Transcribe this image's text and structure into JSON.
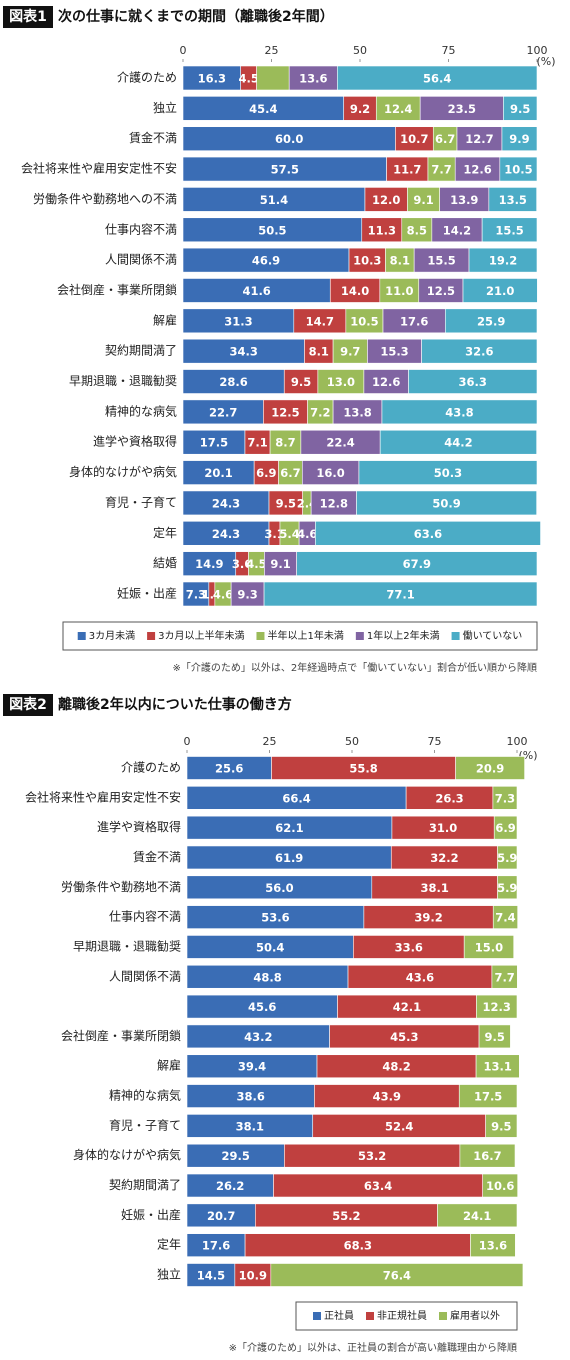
{
  "chart_data": [
    {
      "type": "bar",
      "orientation": "horizontal",
      "stacked": true,
      "label": "図表1",
      "title": "次の仕事に就くまでの期間（離職後2年間）",
      "unit": "(%)",
      "xlim": [
        0,
        100
      ],
      "xticks": [
        0,
        25,
        50,
        75,
        100
      ],
      "grid": false,
      "legend": "bottom",
      "footnote": "※「介護のため」以外は、2年経過時点で「働いていない」割合が低い順から降順",
      "categories": [
        "介護のため",
        "独立",
        "賃金不満",
        "会社将来性や雇用安定性不安",
        "労働条件や勤務地への不満",
        "仕事内容不満",
        "人間関係不満",
        "会社倒産・事業所閉鎖",
        "解雇",
        "契約期間満了",
        "早期退職・退職勧奨",
        "精神的な病気",
        "進学や資格取得",
        "身体的なけがや病気",
        "育児・子育て",
        "定年",
        "結婚",
        "妊娠・出産"
      ],
      "series": [
        {
          "name": "3カ月未満",
          "color": "#3a6db5",
          "values": [
            16.3,
            45.4,
            60.0,
            57.5,
            51.4,
            50.5,
            46.9,
            41.6,
            31.3,
            34.3,
            28.6,
            22.7,
            17.5,
            20.1,
            24.3,
            24.3,
            14.9,
            7.3
          ],
          "value_labels": [
            "16.3",
            "45.4",
            "60.0",
            "57.5",
            "51.4",
            "50.5",
            "46.9",
            "41.6",
            "31.3",
            "34.3",
            "28.6",
            "22.7",
            "17.5",
            "20.1",
            "24.3",
            "24.3",
            "14.9",
            "7.3"
          ]
        },
        {
          "name": "3カ月以上半年未満",
          "color": "#c0403f",
          "values": [
            4.5,
            9.2,
            10.7,
            11.7,
            12.0,
            11.3,
            10.3,
            14.0,
            14.7,
            8.1,
            9.5,
            12.5,
            7.1,
            6.9,
            9.5,
            3.1,
            3.6,
            1.7
          ],
          "value_labels": [
            "4.5",
            "9.2",
            "10.7",
            "11.7",
            "12.0",
            "11.3",
            "10.3",
            "14.0",
            "14.7",
            "8.1",
            "9.5",
            "12.5",
            "7.1",
            "6.9",
            "9.5",
            "3.1",
            "3.6",
            "1.7"
          ]
        },
        {
          "name": "半年以上1年未満",
          "color": "#9bbb59",
          "values": [
            9.2,
            12.4,
            6.7,
            7.7,
            9.1,
            8.5,
            8.1,
            11.0,
            10.5,
            9.7,
            13.0,
            7.2,
            8.7,
            6.7,
            2.4,
            5.4,
            4.5,
            4.6
          ],
          "value_labels": [
            null,
            "12.4",
            "6.7",
            "7.7",
            "9.1",
            "8.5",
            "8.1",
            "11.0",
            "10.5",
            "9.7",
            "13.0",
            "7.2",
            "8.7",
            "6.7",
            "2.4",
            "5.4",
            "4.5",
            "4.6"
          ]
        },
        {
          "name": "1年以上2年未満",
          "color": "#8064a2",
          "values": [
            13.6,
            23.5,
            12.7,
            12.6,
            13.9,
            14.2,
            15.5,
            12.5,
            17.6,
            15.3,
            12.6,
            13.8,
            22.4,
            16.0,
            12.8,
            4.6,
            9.1,
            9.3
          ],
          "value_labels": [
            "13.6",
            "23.5",
            "12.7",
            "12.6",
            "13.9",
            "14.2",
            "15.5",
            "12.5",
            "17.6",
            "15.3",
            "12.6",
            "13.8",
            "22.4",
            "16.0",
            "12.8",
            "4.6",
            "9.1",
            "9.3"
          ]
        },
        {
          "name": "働いていない",
          "color": "#4bacc6",
          "values": [
            56.4,
            9.5,
            9.9,
            10.5,
            13.5,
            15.5,
            19.2,
            21.0,
            25.9,
            32.6,
            36.3,
            43.8,
            44.2,
            50.3,
            50.9,
            63.6,
            67.9,
            77.1
          ],
          "value_labels": [
            "56.4",
            "9.5",
            "9.9",
            "10.5",
            "13.5",
            "15.5",
            "19.2",
            "21.0",
            "25.9",
            "32.6",
            "36.3",
            "43.8",
            "44.2",
            "50.3",
            "50.9",
            "63.6",
            "67.9",
            "77.1"
          ]
        }
      ]
    },
    {
      "type": "bar",
      "orientation": "horizontal",
      "stacked": true,
      "label": "図表2",
      "title": "離職後2年以内についた仕事の働き方",
      "unit": "(%)",
      "xlim": [
        0,
        100
      ],
      "xticks": [
        0,
        25,
        50,
        75,
        100
      ],
      "grid": false,
      "legend": "bottom-right",
      "footnote": "※「介護のため」以外は、正社員の割合が高い離職理由から降順",
      "categories": [
        "介護のため",
        "会社将来性や雇用安定性不安",
        "進学や資格取得",
        "賃金不満",
        "労働条件や勤務地不満",
        "仕事内容不満",
        "早期退職・退職勧奨",
        "人間関係不満",
        null,
        "会社倒産・事業所閉鎖",
        "解雇",
        "精神的な病気",
        "育児・子育て",
        "身体的なけがや病気",
        "契約期間満了",
        "妊娠・出産",
        "定年",
        "独立"
      ],
      "series": [
        {
          "name": "正社員",
          "color": "#3a6db5",
          "values": [
            25.6,
            66.4,
            62.1,
            61.9,
            56.0,
            53.6,
            50.4,
            48.8,
            45.6,
            43.2,
            39.4,
            38.6,
            38.1,
            29.5,
            26.2,
            20.7,
            17.6,
            14.5
          ],
          "value_labels": [
            "25.6",
            "66.4",
            "62.1",
            "61.9",
            "56.0",
            "53.6",
            "50.4",
            "48.8",
            "45.6",
            "43.2",
            "39.4",
            "38.6",
            "38.1",
            "29.5",
            "26.2",
            "20.7",
            "17.6",
            "14.5"
          ]
        },
        {
          "name": "非正規社員",
          "color": "#c0403f",
          "values": [
            55.8,
            26.3,
            31.0,
            32.2,
            38.1,
            39.2,
            33.6,
            43.6,
            42.1,
            45.3,
            48.2,
            43.9,
            52.4,
            53.2,
            63.4,
            55.2,
            68.3,
            10.9
          ],
          "value_labels": [
            "55.8",
            "26.3",
            "31.0",
            "32.2",
            "38.1",
            "39.2",
            "33.6",
            "43.6",
            "42.1",
            "45.3",
            "48.2",
            "43.9",
            "52.4",
            "53.2",
            "63.4",
            "55.2",
            "68.3",
            "10.9"
          ]
        },
        {
          "name": "雇用者以外",
          "color": "#9bbb59",
          "values": [
            20.9,
            7.3,
            6.9,
            5.9,
            5.9,
            7.4,
            15.0,
            7.7,
            12.3,
            9.5,
            13.1,
            17.5,
            9.5,
            16.7,
            10.6,
            24.1,
            13.6,
            76.4
          ],
          "value_labels": [
            "20.9",
            "7.3",
            "6.9",
            "5.9",
            "5.9",
            "7.4",
            "15.0",
            "7.7",
            "12.3",
            "9.5",
            "13.1",
            "17.5",
            "9.5",
            "16.7",
            "10.6",
            "24.1",
            "13.6",
            "76.4"
          ]
        }
      ]
    }
  ]
}
